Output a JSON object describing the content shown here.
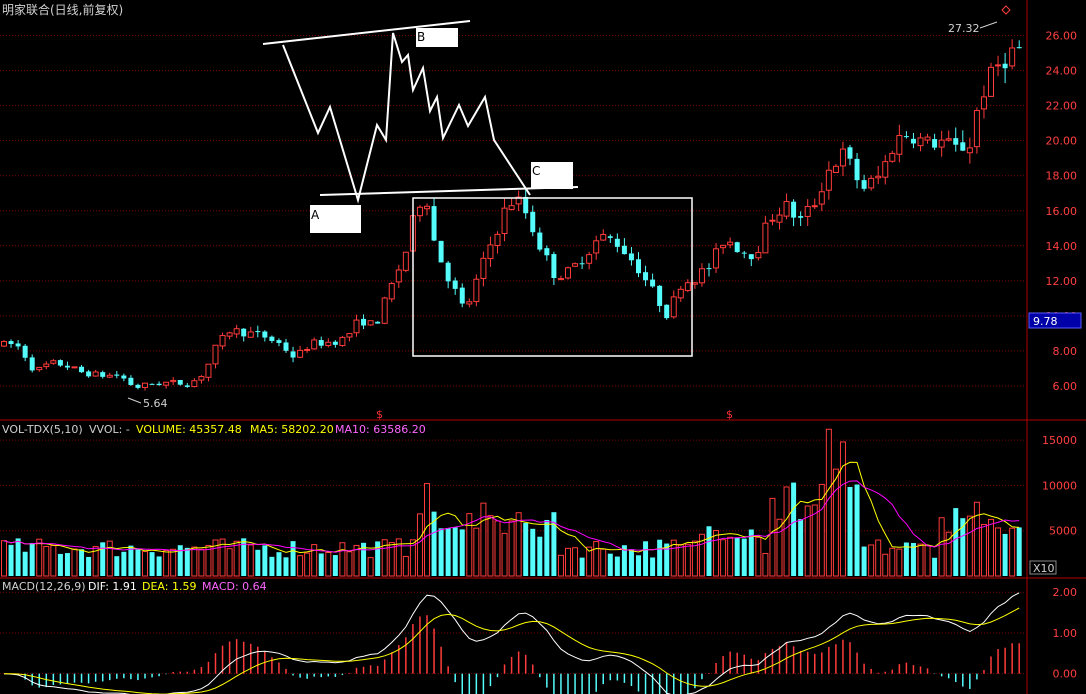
{
  "chart_data": [
    {
      "type": "candlestick",
      "title": "明家联合(日线,前复权)",
      "y_ticks": [
        6.0,
        8.0,
        10.0,
        12.0,
        14.0,
        16.0,
        18.0,
        20.0,
        22.0,
        24.0,
        26.0
      ],
      "y_tick_labels": [
        "6.00",
        "8.00",
        "10.00",
        "12.00",
        "14.00",
        "16.00",
        "18.00",
        "20.00",
        "22.00",
        "24.00",
        "26.00"
      ],
      "ylim": [
        4.8,
        27.8
      ],
      "current_price": "9.78",
      "high_label": "27.32",
      "low_label": "5.64",
      "pattern_points": [
        "A",
        "B",
        "C"
      ],
      "markers": [
        "$",
        "$"
      ],
      "colors": {
        "up": "#ff3b3b",
        "down": "#54fcfc",
        "grid": "#7a0000",
        "pattern": "#ffffff",
        "price_box": "#0000a8"
      }
    },
    {
      "type": "bar",
      "indicator": "VOL-TDX(5,10)",
      "vvol": "VVOL: -",
      "volume_label": "VOLUME: 45357.48",
      "ma5_label": "MA5: 58202.20",
      "ma10_label": "MA10: 63586.20",
      "y_ticks": [
        5000,
        10000,
        15000
      ],
      "y_tick_labels": [
        "5000",
        "10000",
        "15000"
      ],
      "ylim": [
        0,
        17000
      ],
      "unit": "X10",
      "colors": {
        "volume": "#ffffff",
        "ma5": "#ffff00",
        "ma10": "#ff00ff"
      }
    },
    {
      "type": "line",
      "indicator": "MACD(12,26,9)",
      "dif_label": "DIF: 1.91",
      "dea_label": "DEA: 1.59",
      "macd_label": "MACD: 0.64",
      "y_ticks": [
        0,
        1,
        2
      ],
      "y_tick_labels": [
        "0.00",
        "1.00",
        "2.00"
      ],
      "ylim": [
        -0.45,
        2.3
      ],
      "colors": {
        "dif": "#ffffff",
        "dea": "#ffff00",
        "macd": "#ff00ff"
      }
    }
  ]
}
